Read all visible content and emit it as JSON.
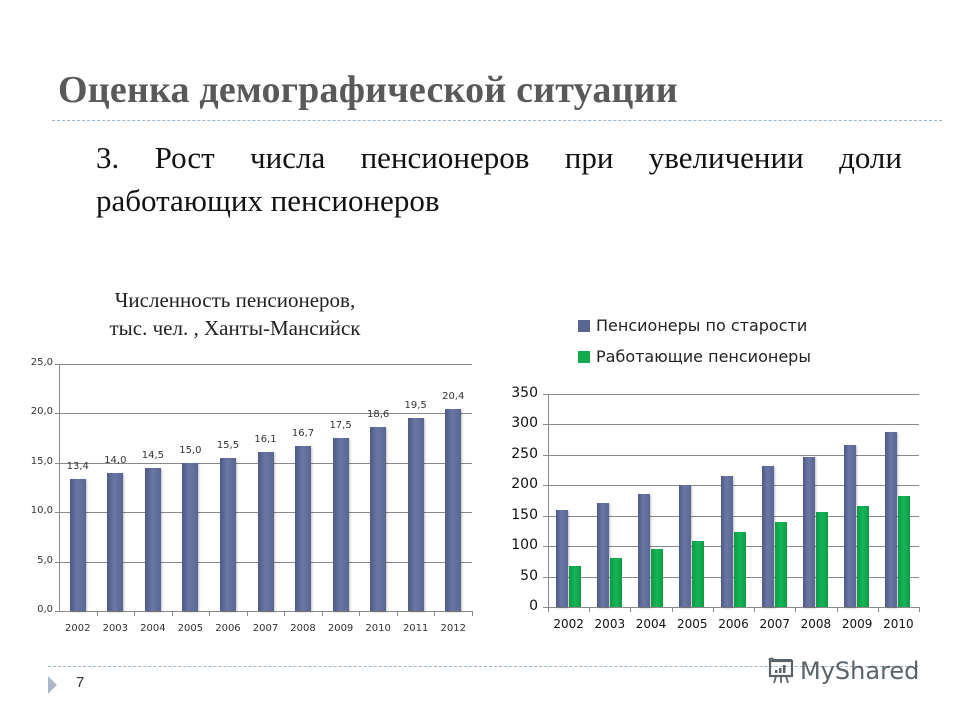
{
  "slide": {
    "title": "Оценка демографической ситуации",
    "subtitle": "3. Рост числа пенсионеров при увеличении доли работающих пенсионеров",
    "slide_number": "7",
    "watermark": "MyShared"
  },
  "left_chart": {
    "title_line1": "Численность пенсионеров,",
    "title_line2": "тыс. чел. , Ханты-Мансийск",
    "y_ticks": [
      "0,0",
      "5,0",
      "10,0",
      "15,0",
      "20,0",
      "25,0"
    ],
    "categories": [
      "2002",
      "2003",
      "2004",
      "2005",
      "2006",
      "2007",
      "2008",
      "2009",
      "2010",
      "2011",
      "2012"
    ],
    "value_labels": [
      "13,4",
      "14,0",
      "14,5",
      "15,0",
      "15,5",
      "16,1",
      "16,7",
      "17,5",
      "18,6",
      "19,5",
      "20,4"
    ]
  },
  "right_chart": {
    "legend": [
      "Пенсионеры по старости",
      "Работающие пенсионеры"
    ],
    "y_ticks": [
      "0",
      "50",
      "100",
      "150",
      "200",
      "250",
      "300",
      "350"
    ],
    "categories": [
      "2002",
      "2003",
      "2004",
      "2005",
      "2006",
      "2007",
      "2008",
      "2009",
      "2010"
    ]
  },
  "colors": {
    "series_blue": "#5b6792",
    "series_green": "#12a94e",
    "title_gray": "#595959"
  },
  "chart_data": [
    {
      "type": "bar",
      "title": "Численность пенсионеров, тыс. чел. , Ханты-Мансийск",
      "categories": [
        "2002",
        "2003",
        "2004",
        "2005",
        "2006",
        "2007",
        "2008",
        "2009",
        "2010",
        "2011",
        "2012"
      ],
      "values": [
        13.4,
        14.0,
        14.5,
        15.0,
        15.5,
        16.1,
        16.7,
        17.5,
        18.6,
        19.5,
        20.4
      ],
      "xlabel": "",
      "ylabel": "",
      "ylim": [
        0,
        25
      ],
      "y_ticks": [
        0,
        5,
        10,
        15,
        20,
        25
      ],
      "grid": true,
      "data_labels": true,
      "legend": null
    },
    {
      "type": "bar",
      "title": "",
      "categories": [
        "2002",
        "2003",
        "2004",
        "2005",
        "2006",
        "2007",
        "2008",
        "2009",
        "2010"
      ],
      "series": [
        {
          "name": "Пенсионеры по старости",
          "color": "#5b6792",
          "values": [
            160,
            171,
            186,
            201,
            215,
            232,
            247,
            267,
            287
          ]
        },
        {
          "name": "Работающие пенсионеры",
          "color": "#12a94e",
          "values": [
            68,
            80,
            95,
            108,
            123,
            139,
            156,
            166,
            183
          ]
        }
      ],
      "xlabel": "",
      "ylabel": "",
      "ylim": [
        0,
        350
      ],
      "y_ticks": [
        0,
        50,
        100,
        150,
        200,
        250,
        300,
        350
      ],
      "grid": true,
      "legend_position": "top"
    }
  ]
}
